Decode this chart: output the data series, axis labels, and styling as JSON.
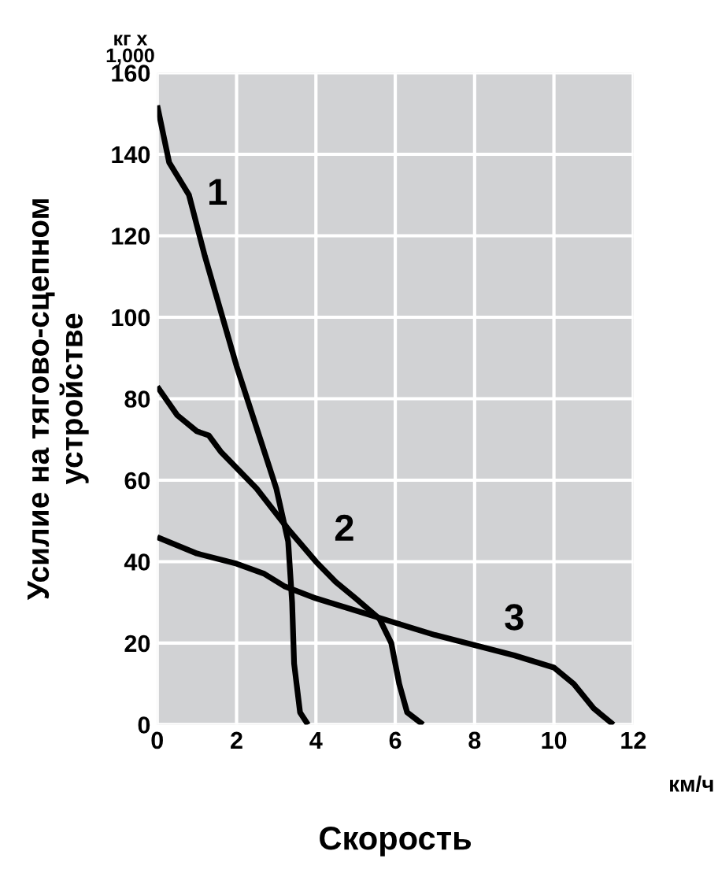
{
  "chart_data": {
    "type": "line",
    "xlabel": "Скорость",
    "ylabel": "Усилие на тягово-сцепном\nустройстве",
    "xlim": [
      0,
      12
    ],
    "xticks": [
      0,
      2,
      4,
      6,
      8,
      10,
      12
    ],
    "ylim": [
      0,
      160
    ],
    "yticks": [
      0,
      20,
      40,
      60,
      80,
      100,
      120,
      140,
      160
    ],
    "grid": true,
    "marker": "none",
    "line_style": "solid",
    "series": [
      {
        "name": "1",
        "color": "#000000",
        "x": [
          0,
          0.3,
          0.8,
          1.2,
          2,
          2.6,
          3,
          3.3,
          3.4,
          3.45,
          3.6,
          3.8
        ],
        "values": [
          152,
          138,
          130,
          115,
          88,
          70,
          58,
          45,
          30,
          15,
          3,
          0
        ]
      },
      {
        "name": "2",
        "color": "#000000",
        "x": [
          0,
          0.5,
          1,
          1.3,
          1.6,
          2.5,
          3.3,
          4,
          4.5,
          5,
          5.6,
          5.9,
          6.1,
          6.3,
          6.7
        ],
        "values": [
          83,
          76,
          72,
          71,
          67,
          58,
          48,
          40,
          35,
          31,
          26,
          20,
          10,
          3,
          0
        ]
      },
      {
        "name": "3",
        "color": "#000000",
        "x": [
          0,
          1,
          2,
          2.7,
          3.2,
          4,
          5,
          6,
          7,
          8,
          9,
          10,
          10.5,
          11,
          11.5
        ],
        "values": [
          46,
          42,
          39.5,
          37,
          34,
          31,
          28,
          25,
          22,
          19.5,
          17,
          14,
          10,
          4,
          0
        ]
      }
    ],
    "annotations": [
      "кг x\n1,000",
      "км/ч"
    ]
  }
}
